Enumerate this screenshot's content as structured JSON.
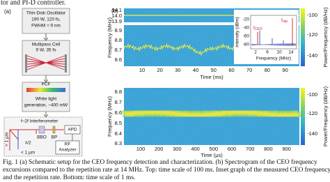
{
  "header_fragment": "tor and PI-D controller.",
  "panel_a": {
    "label": "(a)",
    "oscillator": [
      "Thin-Disk Oscillator",
      "190 W, 120 fs,",
      "FWHM ≈ 9 nm"
    ],
    "multipass": [
      "Multipass Cell",
      "9 W, 35 fs"
    ],
    "pcf": {
      "label": "PCF",
      "text": [
        "White light",
        "generation, ~400 mW"
      ]
    },
    "interferometer": {
      "title": "f–2f Interferometer",
      "bbo": "BBO",
      "bp": "BP",
      "apd": "APD",
      "rf": [
        "RF",
        "Analyzer"
      ],
      "waveplate": "λ/2",
      "long": "> 1 µm",
      "short": "< 1 µm"
    }
  },
  "panel_b": {
    "label": "(b)",
    "top": {
      "y_label": "Frequency (MHz)",
      "y_ticks": [
        "14.1",
        "14.0",
        "13.9",
        "8.9",
        "8.8",
        "8.7",
        "8.6"
      ],
      "x_ticks": [
        "10",
        "20",
        "30",
        "40",
        "50",
        "60",
        "70",
        "80",
        "90"
      ],
      "x_label": "Time (ms)",
      "colorbar_ticks": [
        "-100",
        "-120",
        "-140"
      ],
      "colorbar_label": "Power/Frequency (dB/Hz)",
      "inset": {
        "y_label": "Intensity (dBm)",
        "y_ticks": [
          "-20",
          "-40",
          "-60",
          "-80"
        ],
        "x_ticks": [
          "2",
          "6",
          "10",
          "14"
        ],
        "x_label": "Frequency (MHz)",
        "ceo": {
          "symbol": "f",
          "subscript": "CEO"
        },
        "rep": {
          "symbol": "f",
          "subscript": "rep"
        }
      }
    },
    "bottom": {
      "y_label": "Frequency (MHz)",
      "y_ticks": [
        "8.8",
        "8.7",
        "8.6",
        "8.5",
        "8.4",
        "8.3"
      ],
      "x_ticks": [
        "100",
        "200",
        "300",
        "400",
        "500",
        "600",
        "700",
        "800",
        "900"
      ],
      "x_label": "Time (µs)",
      "colorbar_ticks": [
        "-100",
        "-120",
        "-140"
      ],
      "colorbar_label": "Power/Frequency (dB/Hz)"
    }
  },
  "caption": [
    "Fig. 1 (a) Schematic setup for the CEO frequency detection and characterization. (b) Spectrogram of the CEO frequency",
    "excursions compared to the repetition rate at 14 MHz. Top: time scale of 100 ms. Inset graph of the measured CEO frequency",
    "and the repetition rate. Bottom: time scale of 1 ms."
  ]
}
